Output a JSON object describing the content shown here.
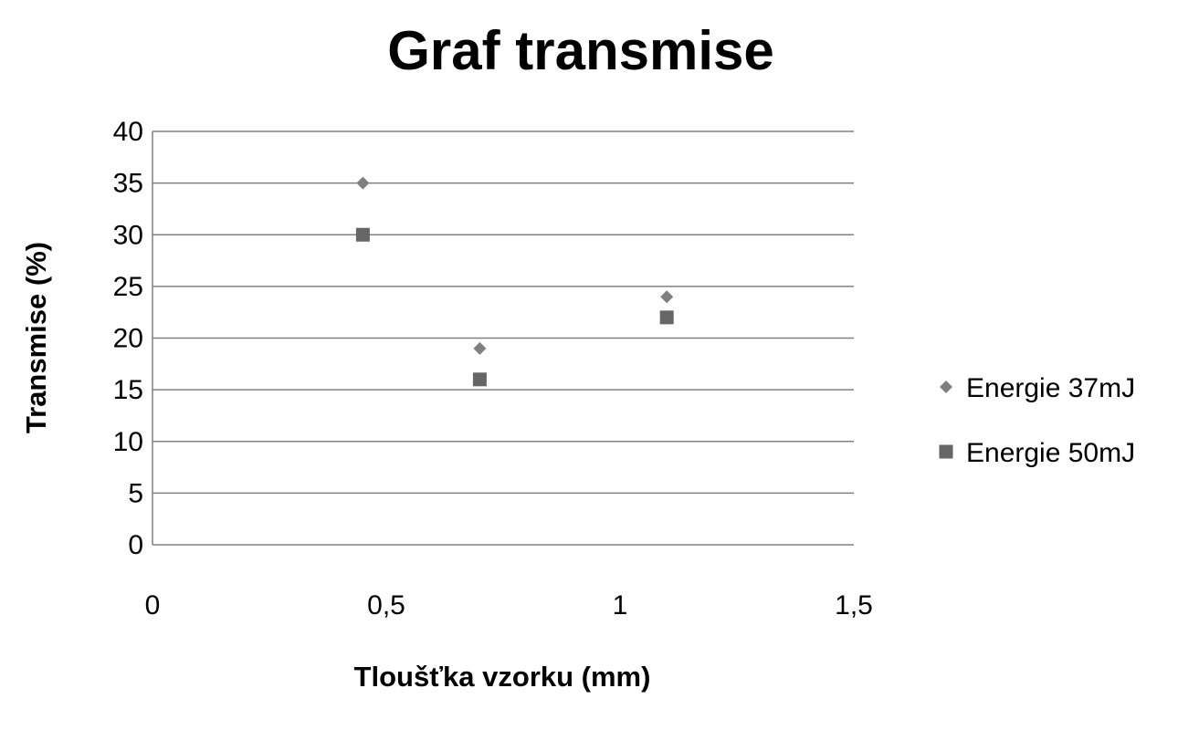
{
  "chart_data": {
    "type": "scatter",
    "title": "Graf transmise",
    "xlabel": "Tloušťka vzorku (mm)",
    "ylabel": "Transmise (%)",
    "xlim": [
      0,
      1.5
    ],
    "ylim": [
      0,
      40
    ],
    "x_ticks": [
      "0",
      "0,5",
      "1",
      "1,5"
    ],
    "x_tick_values": [
      0,
      0.5,
      1,
      1.5
    ],
    "y_ticks": [
      "0",
      "5",
      "10",
      "15",
      "20",
      "25",
      "30",
      "35",
      "40"
    ],
    "y_tick_values": [
      0,
      5,
      10,
      15,
      20,
      25,
      30,
      35,
      40
    ],
    "grid": "horizontal",
    "legend": "right",
    "series": [
      {
        "name": "Energie 37mJ",
        "marker": "diamond",
        "color": "#7f7f7f",
        "x": [
          0.45,
          0.7,
          1.1
        ],
        "y": [
          35,
          19,
          24
        ]
      },
      {
        "name": "Energie 50mJ",
        "marker": "square",
        "color": "#666666",
        "x": [
          0.45,
          0.7,
          1.1
        ],
        "y": [
          30,
          16,
          22
        ]
      }
    ]
  }
}
